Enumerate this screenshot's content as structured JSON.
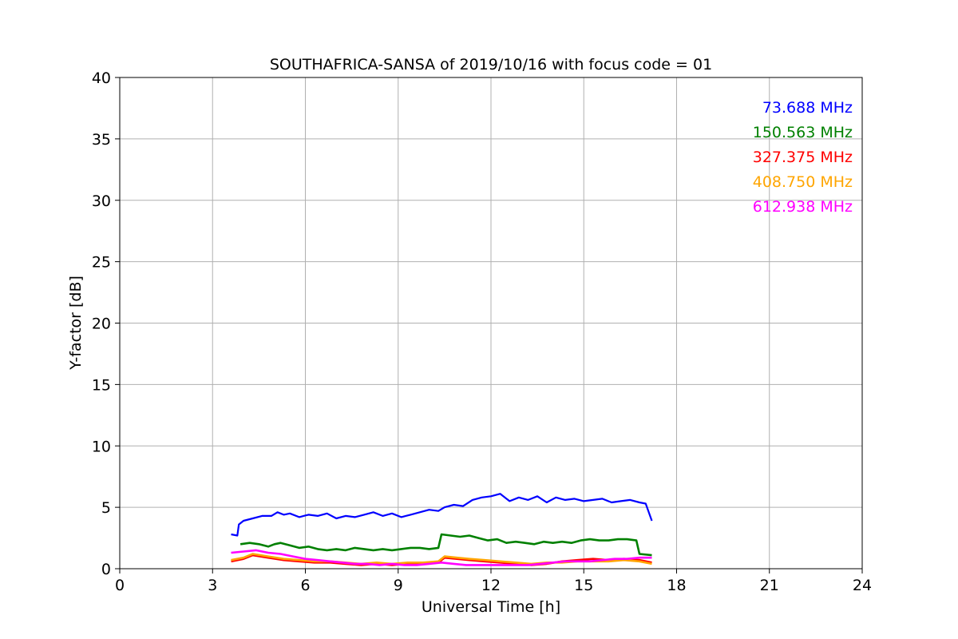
{
  "chart_data": {
    "type": "line",
    "title": "SOUTHAFRICA-SANSA of 2019/10/16 with focus code = 01",
    "xlabel": "Universal Time [h]",
    "ylabel": "Y-factor [dB]",
    "xlim": [
      0,
      24
    ],
    "ylim": [
      0,
      40
    ],
    "xticks": [
      0,
      3,
      6,
      9,
      12,
      15,
      18,
      21,
      24
    ],
    "yticks": [
      0,
      5,
      10,
      15,
      20,
      25,
      30,
      35,
      40
    ],
    "grid": true,
    "legend_position": "top-right",
    "series": [
      {
        "name": "73.688 MHz",
        "color": "#0000ff",
        "x": [
          3.6,
          3.8,
          3.85,
          4.0,
          4.3,
          4.6,
          4.9,
          5.1,
          5.3,
          5.5,
          5.8,
          6.1,
          6.4,
          6.7,
          7.0,
          7.3,
          7.6,
          7.9,
          8.2,
          8.5,
          8.8,
          9.1,
          9.4,
          9.7,
          10.0,
          10.3,
          10.5,
          10.8,
          11.1,
          11.4,
          11.7,
          12.0,
          12.3,
          12.6,
          12.9,
          13.2,
          13.5,
          13.8,
          14.1,
          14.4,
          14.7,
          15.0,
          15.3,
          15.6,
          15.9,
          16.2,
          16.5,
          16.8,
          17.0,
          17.2
        ],
        "y": [
          2.8,
          2.7,
          3.6,
          3.9,
          4.1,
          4.3,
          4.3,
          4.6,
          4.4,
          4.5,
          4.2,
          4.4,
          4.3,
          4.5,
          4.1,
          4.3,
          4.2,
          4.4,
          4.6,
          4.3,
          4.5,
          4.2,
          4.4,
          4.6,
          4.8,
          4.7,
          5.0,
          5.2,
          5.1,
          5.6,
          5.8,
          5.9,
          6.1,
          5.5,
          5.8,
          5.6,
          5.9,
          5.4,
          5.8,
          5.6,
          5.7,
          5.5,
          5.6,
          5.7,
          5.4,
          5.5,
          5.6,
          5.4,
          5.3,
          3.9
        ]
      },
      {
        "name": "150.563 MHz",
        "color": "#008000",
        "x": [
          3.9,
          4.2,
          4.5,
          4.8,
          5.0,
          5.2,
          5.5,
          5.8,
          6.1,
          6.4,
          6.7,
          7.0,
          7.3,
          7.6,
          7.9,
          8.2,
          8.5,
          8.8,
          9.1,
          9.4,
          9.7,
          10.0,
          10.3,
          10.4,
          10.7,
          11.0,
          11.3,
          11.6,
          11.9,
          12.2,
          12.5,
          12.8,
          13.1,
          13.4,
          13.7,
          14.0,
          14.3,
          14.6,
          14.9,
          15.2,
          15.5,
          15.8,
          16.1,
          16.4,
          16.7,
          16.8,
          17.2
        ],
        "y": [
          2.0,
          2.1,
          2.0,
          1.8,
          2.0,
          2.1,
          1.9,
          1.7,
          1.8,
          1.6,
          1.5,
          1.6,
          1.5,
          1.7,
          1.6,
          1.5,
          1.6,
          1.5,
          1.6,
          1.7,
          1.7,
          1.6,
          1.7,
          2.8,
          2.7,
          2.6,
          2.7,
          2.5,
          2.3,
          2.4,
          2.1,
          2.2,
          2.1,
          2.0,
          2.2,
          2.1,
          2.2,
          2.1,
          2.3,
          2.4,
          2.3,
          2.3,
          2.4,
          2.4,
          2.3,
          1.2,
          1.1
        ]
      },
      {
        "name": "327.375 MHz",
        "color": "#ff0000",
        "x": [
          3.6,
          4.0,
          4.3,
          4.8,
          5.3,
          5.8,
          6.3,
          6.8,
          7.3,
          7.8,
          8.3,
          8.8,
          9.3,
          9.8,
          10.3,
          10.5,
          10.9,
          11.3,
          11.8,
          12.3,
          12.8,
          13.3,
          13.8,
          14.3,
          14.8,
          15.3,
          15.8,
          16.3,
          16.8,
          17.2
        ],
        "y": [
          0.6,
          0.8,
          1.1,
          0.9,
          0.7,
          0.6,
          0.5,
          0.5,
          0.4,
          0.3,
          0.4,
          0.3,
          0.4,
          0.4,
          0.5,
          0.9,
          0.8,
          0.7,
          0.6,
          0.5,
          0.4,
          0.3,
          0.4,
          0.6,
          0.7,
          0.8,
          0.7,
          0.8,
          0.7,
          0.5
        ]
      },
      {
        "name": "408.750 MHz",
        "color": "#ffa500",
        "x": [
          3.6,
          4.0,
          4.3,
          4.8,
          5.3,
          5.8,
          6.3,
          6.8,
          7.3,
          7.8,
          8.3,
          8.8,
          9.3,
          9.8,
          10.3,
          10.5,
          10.9,
          11.3,
          11.8,
          12.3,
          12.8,
          13.3,
          13.8,
          14.3,
          14.8,
          15.3,
          15.8,
          16.3,
          16.8,
          17.2
        ],
        "y": [
          0.7,
          0.9,
          1.2,
          1.0,
          0.8,
          0.7,
          0.6,
          0.6,
          0.5,
          0.4,
          0.5,
          0.4,
          0.5,
          0.5,
          0.6,
          1.0,
          0.9,
          0.8,
          0.7,
          0.6,
          0.5,
          0.4,
          0.5,
          0.5,
          0.6,
          0.6,
          0.6,
          0.7,
          0.6,
          0.4
        ]
      },
      {
        "name": "612.938 MHz",
        "color": "#ff00ff",
        "x": [
          3.6,
          4.0,
          4.4,
          4.8,
          5.2,
          5.6,
          6.0,
          6.4,
          6.8,
          7.2,
          7.6,
          8.0,
          8.4,
          8.8,
          9.2,
          9.6,
          10.0,
          10.4,
          10.8,
          11.2,
          11.6,
          12.0,
          12.4,
          12.8,
          13.2,
          13.6,
          14.0,
          14.4,
          14.8,
          15.2,
          15.6,
          16.0,
          16.4,
          16.8,
          17.2
        ],
        "y": [
          1.3,
          1.4,
          1.5,
          1.3,
          1.2,
          1.0,
          0.8,
          0.7,
          0.6,
          0.5,
          0.4,
          0.4,
          0.3,
          0.4,
          0.3,
          0.3,
          0.4,
          0.5,
          0.4,
          0.3,
          0.3,
          0.3,
          0.3,
          0.3,
          0.3,
          0.4,
          0.5,
          0.6,
          0.6,
          0.6,
          0.7,
          0.8,
          0.8,
          0.9,
          0.9
        ]
      }
    ]
  }
}
